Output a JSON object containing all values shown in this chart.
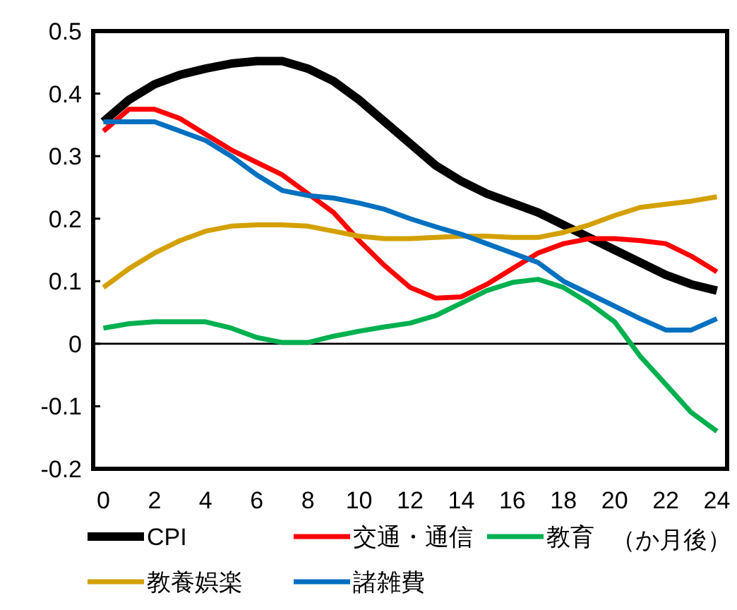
{
  "chart_data": {
    "type": "line",
    "xlabel": "（か月後）",
    "x": [
      0,
      1,
      2,
      3,
      4,
      5,
      6,
      7,
      8,
      9,
      10,
      11,
      12,
      13,
      14,
      15,
      16,
      17,
      18,
      19,
      20,
      21,
      22,
      23,
      24
    ],
    "xlim": [
      -0.4,
      24.4
    ],
    "xticks": [
      0,
      2,
      4,
      6,
      8,
      10,
      12,
      14,
      16,
      18,
      20,
      22,
      24
    ],
    "ylim": [
      -0.2,
      0.5
    ],
    "yticks": [
      {
        "value": -0.2,
        "label": "-0.2"
      },
      {
        "value": -0.1,
        "label": "-0.1"
      },
      {
        "value": 0,
        "label": "0"
      },
      {
        "value": 0.1,
        "label": "0.1"
      },
      {
        "value": 0.2,
        "label": "0.2"
      },
      {
        "value": 0.3,
        "label": "0.3"
      },
      {
        "value": 0.4,
        "label": "0.4"
      },
      {
        "value": 0.5,
        "label": "0.5"
      }
    ],
    "ref_lines": [
      {
        "axis": "y",
        "value": 0,
        "color": "#000000"
      }
    ],
    "legend": "bottom",
    "grid": false,
    "line_style": "solid",
    "marker": "none",
    "series": [
      {
        "name": "CPI",
        "color": "#000000",
        "values": [
          0.355,
          0.39,
          0.415,
          0.43,
          0.44,
          0.448,
          0.452,
          0.452,
          0.44,
          0.42,
          0.39,
          0.355,
          0.32,
          0.285,
          0.26,
          0.24,
          0.225,
          0.21,
          0.19,
          0.17,
          0.15,
          0.13,
          0.11,
          0.095,
          0.085
        ]
      },
      {
        "name": "交通・通信",
        "color": "#ff0000",
        "values": [
          0.34,
          0.375,
          0.375,
          0.36,
          0.335,
          0.31,
          0.29,
          0.27,
          0.24,
          0.21,
          0.165,
          0.125,
          0.09,
          0.073,
          0.075,
          0.095,
          0.12,
          0.145,
          0.16,
          0.168,
          0.168,
          0.165,
          0.16,
          0.14,
          0.115
        ]
      },
      {
        "name": "教育",
        "color": "#00b050",
        "values": [
          0.025,
          0.032,
          0.035,
          0.035,
          0.035,
          0.025,
          0.01,
          0.002,
          0.002,
          0.012,
          0.02,
          0.027,
          0.033,
          0.045,
          0.065,
          0.085,
          0.098,
          0.103,
          0.09,
          0.065,
          0.035,
          -0.02,
          -0.065,
          -0.11,
          -0.14
        ]
      },
      {
        "name": "教養娯楽",
        "color": "#d4a000",
        "values": [
          0.09,
          0.12,
          0.145,
          0.165,
          0.18,
          0.188,
          0.19,
          0.19,
          0.188,
          0.18,
          0.172,
          0.168,
          0.168,
          0.17,
          0.172,
          0.172,
          0.17,
          0.17,
          0.178,
          0.19,
          0.205,
          0.218,
          0.223,
          0.228,
          0.235
        ]
      },
      {
        "name": "諸雑費",
        "color": "#0070c0",
        "values": [
          0.355,
          0.355,
          0.355,
          0.34,
          0.325,
          0.3,
          0.27,
          0.245,
          0.237,
          0.233,
          0.225,
          0.215,
          0.2,
          0.187,
          0.175,
          0.16,
          0.145,
          0.13,
          0.1,
          0.08,
          0.06,
          0.04,
          0.022,
          0.022,
          0.04
        ]
      }
    ]
  }
}
